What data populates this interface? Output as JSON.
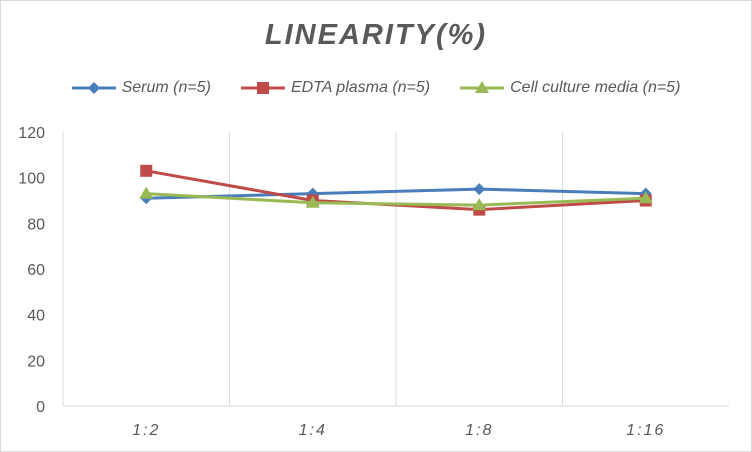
{
  "chart_data": {
    "type": "line",
    "title": "LINEARITY(%)",
    "categories": [
      "1:2",
      "1:4",
      "1:8",
      "1:16"
    ],
    "ylim": [
      0,
      120
    ],
    "yticks": [
      0,
      20,
      40,
      60,
      80,
      100,
      120
    ],
    "legend_position": "top",
    "grid": "vertical",
    "series": [
      {
        "name": "Serum (n=5)",
        "values": [
          91,
          93,
          95,
          93
        ],
        "color": "#4a7ebb",
        "marker": "diamond"
      },
      {
        "name": "EDTA plasma (n=5)",
        "values": [
          103,
          90,
          86,
          90
        ],
        "color": "#be4b48",
        "marker": "square"
      },
      {
        "name": "Cell culture media (n=5)",
        "values": [
          93,
          89,
          88,
          91
        ],
        "color": "#98b954",
        "marker": "triangle"
      }
    ]
  }
}
